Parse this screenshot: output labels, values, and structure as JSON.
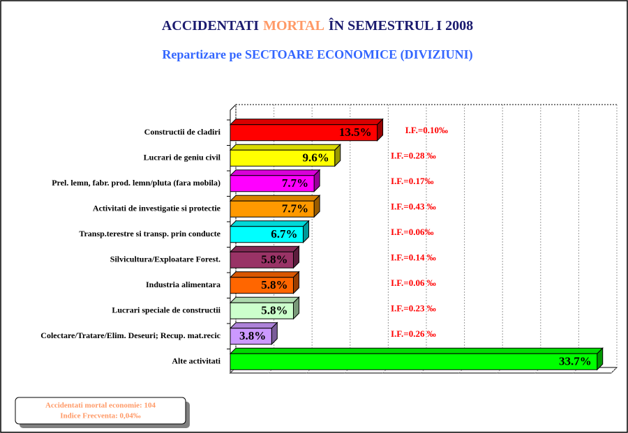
{
  "chart_data": {
    "type": "bar3d-horizontal",
    "title": [
      "ACCIDENTATI",
      "MORTAL",
      "ÎN SEMESTRUL I 2008"
    ],
    "subtitle": "Repartizare pe SECTOARE ECONOMICE (DIVIZIUNI)",
    "categories": [
      "Constructii de cladiri",
      "Lucrari de geniu civil",
      "Prel. lemn, fabr. prod. lemn/pluta (fara mobila)",
      "Activitati de investigatie si protectie",
      "Transp.terestre si transp. prin conducte",
      "Silvicultura/Exploatare Forest.",
      "Industria alimentara",
      "Lucrari speciale de constructii",
      "Colectare/Tratare/Elim. Deseuri; Recup. mat.recic",
      "Alte activitati"
    ],
    "values": [
      13.5,
      9.6,
      7.7,
      7.7,
      6.7,
      5.8,
      5.8,
      5.8,
      3.8,
      33.7
    ],
    "value_labels": [
      "13.5%",
      "9.6%",
      "7.7%",
      "7.7%",
      "6.7%",
      "5.8%",
      "5.8%",
      "5.8%",
      "3.8%",
      "33.7%"
    ],
    "colors": [
      "#ff0000",
      "#ffff00",
      "#ff00ff",
      "#ff9900",
      "#00ffff",
      "#993366",
      "#ff6600",
      "#ccffcc",
      "#cc99ff",
      "#00ff00"
    ],
    "annotations": [
      "I.F.=0.10‰",
      "I.F.=0.28 ‰",
      "I.F.=0.17‰",
      "I.F.=0.43 ‰",
      "I.F.=0.06‰",
      "I.F.=0.14 ‰",
      "I.F.=0.06 ‰",
      "I.F.=0.23 ‰",
      "I.F.=0.26 ‰"
    ],
    "note": [
      "Accidentati mortal economie: 104",
      "Indice Frecventa: 0,04‰"
    ],
    "xlim": [
      0,
      35
    ],
    "xticks": [
      0,
      3.5,
      7,
      10.5,
      14,
      17.5,
      21,
      24.5,
      28,
      31.5,
      35
    ],
    "grid": true
  }
}
